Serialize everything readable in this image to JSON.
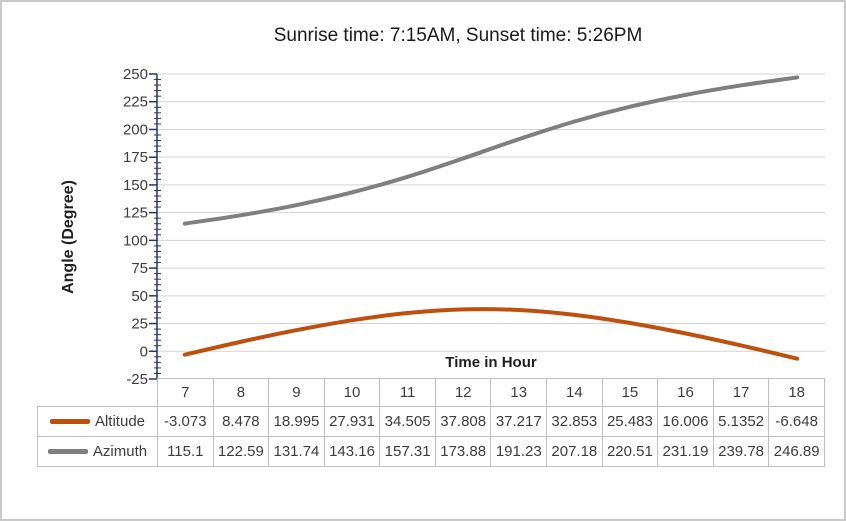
{
  "window": {
    "background": "#ffffff",
    "border_color": "#c9c9c9"
  },
  "chart_data": {
    "type": "line",
    "title": "Sunrise time: 7:15AM, Sunset time: 5:26PM",
    "xlabel": "Time in Hour",
    "ylabel": "Angle (Degree)",
    "ylim": [
      -25,
      250
    ],
    "ytick_step": 25,
    "yminor_step": 5,
    "yticks": [
      "250",
      "225",
      "200",
      "175",
      "150",
      "125",
      "100",
      "75",
      "50",
      "25",
      "0",
      "-25"
    ],
    "grid": true,
    "smooth_lines": true,
    "legend_position": "data-table-left",
    "axis_color": "#1f3864",
    "gridline_color": "#d3d3d3",
    "table_border_color": "#bfbfbf",
    "categories": [
      "7",
      "8",
      "9",
      "10",
      "11",
      "12",
      "13",
      "14",
      "15",
      "16",
      "17",
      "18"
    ],
    "series": [
      {
        "name": "Altitude",
        "color": "#be4f0c",
        "values": [
          "-3.073",
          "8.478",
          "18.995",
          "27.931",
          "34.505",
          "37.808",
          "37.217",
          "32.853",
          "25.483",
          "16.006",
          "5.1352",
          "-6.648"
        ]
      },
      {
        "name": "Azimuth",
        "color": "#7f7f7f",
        "values": [
          "115.1",
          "122.59",
          "131.74",
          "143.16",
          "157.31",
          "173.88",
          "191.23",
          "207.18",
          "220.51",
          "231.19",
          "239.78",
          "246.89"
        ]
      }
    ]
  }
}
